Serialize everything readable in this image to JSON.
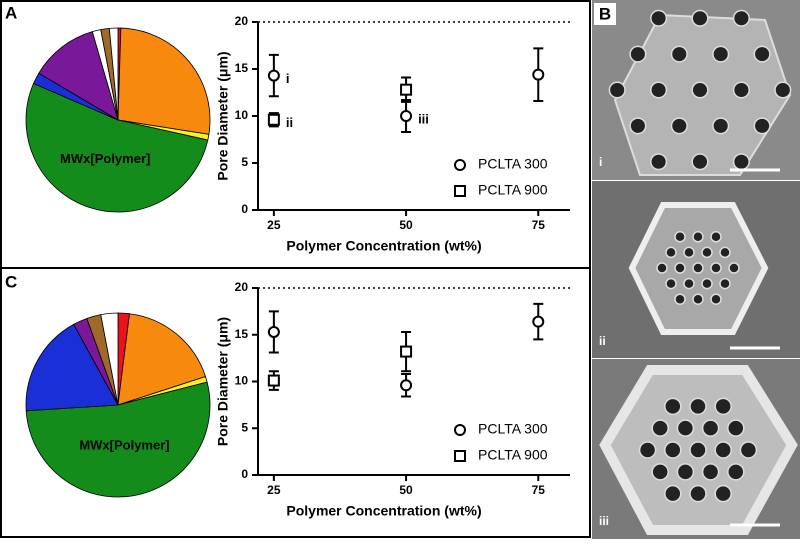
{
  "panels": {
    "a": "A",
    "b": "B",
    "c": "C",
    "images": [
      "i",
      "ii",
      "iii"
    ]
  },
  "chart_data": [
    {
      "type": "pie",
      "categories": [
        null,
        null,
        null,
        "MWx[Polymer]",
        null,
        null,
        null,
        null,
        null
      ],
      "values": [
        0.5,
        27,
        1,
        53,
        2,
        12,
        1.5,
        1.5,
        1.5
      ],
      "colors": [
        "#e8141c",
        "#f7890f",
        "#f4ef2a",
        "#148c1c",
        "#1a2fd6",
        "#7a189a",
        "#ffffff",
        "#a0692a",
        "#ffffff"
      ]
    },
    {
      "type": "errorbar",
      "x_label": "Polymer Concentration (wt%)",
      "y_label": "Pore Diameter (μm)",
      "xlim": [
        22,
        81
      ],
      "xticks": [
        25,
        50,
        75
      ],
      "ylim": [
        0,
        20
      ],
      "yticks": [
        0,
        5,
        10,
        15,
        20
      ],
      "top_dotted_line": true,
      "legend": "lower-right",
      "series": [
        {
          "name": "PCLTA 300",
          "marker": "circle",
          "x": [
            25,
            50,
            75
          ],
          "values": [
            14.3,
            10.0,
            14.4
          ],
          "errors": [
            2.2,
            1.7,
            2.8
          ],
          "point_labels": [
            "i",
            "iii",
            null
          ]
        },
        {
          "name": "PCLTA 900",
          "marker": "square",
          "x": [
            25,
            50
          ],
          "values": [
            9.6,
            12.8
          ],
          "errors": [
            0.7,
            1.3
          ],
          "point_labels": [
            "ii",
            null
          ]
        }
      ]
    },
    {
      "type": "pie",
      "categories": [
        null,
        null,
        null,
        "MWx[Polymer]",
        null,
        null,
        null,
        null
      ],
      "values": [
        2,
        18,
        1,
        53,
        18,
        2.5,
        2.5,
        3
      ],
      "colors": [
        "#e8141c",
        "#f7890f",
        "#f4ef2a",
        "#148c1c",
        "#1a2fd6",
        "#7a189a",
        "#a0692a",
        "#ffffff"
      ]
    },
    {
      "type": "errorbar",
      "x_label": "Polymer Concentration (wt%)",
      "y_label": "Pore Diameter (μm)",
      "xlim": [
        22,
        81
      ],
      "xticks": [
        25,
        50,
        75
      ],
      "ylim": [
        0,
        20
      ],
      "yticks": [
        0,
        5,
        10,
        15,
        20
      ],
      "top_dotted_line": true,
      "legend": "lower-right",
      "series": [
        {
          "name": "PCLTA 300",
          "marker": "circle",
          "x": [
            25,
            50,
            75
          ],
          "values": [
            15.3,
            9.6,
            16.4
          ],
          "errors": [
            2.2,
            1.2,
            1.9
          ],
          "point_labels": [
            null,
            null,
            null
          ]
        },
        {
          "name": "PCLTA 900",
          "marker": "square",
          "x": [
            25,
            50
          ],
          "values": [
            10.1,
            13.2
          ],
          "errors": [
            1.0,
            2.1
          ],
          "point_labels": [
            null,
            null
          ]
        }
      ]
    }
  ]
}
